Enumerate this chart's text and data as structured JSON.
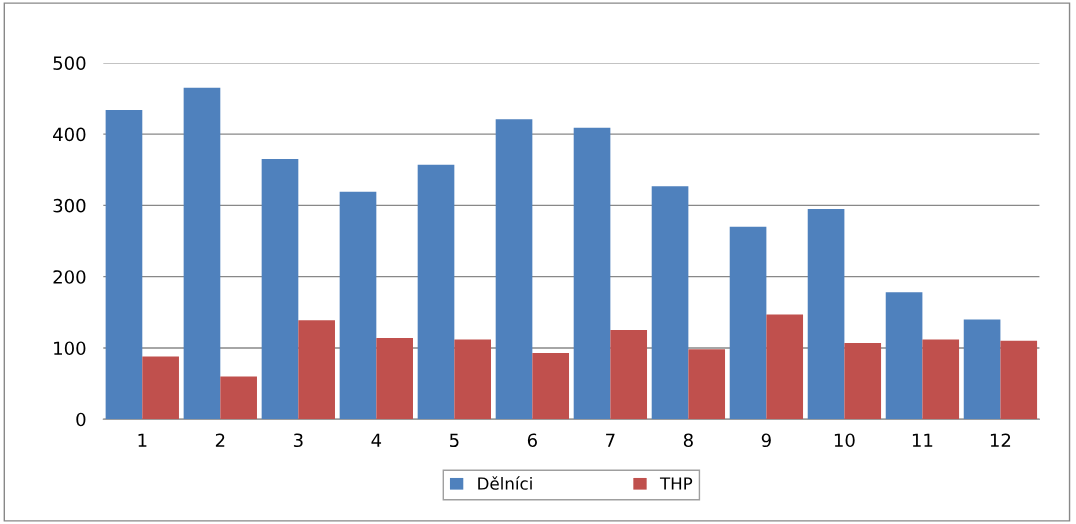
{
  "chart_data": {
    "type": "bar",
    "categories": [
      "1",
      "2",
      "3",
      "4",
      "5",
      "6",
      "7",
      "8",
      "9",
      "10",
      "11",
      "12"
    ],
    "series": [
      {
        "name": "Dělníci",
        "color": "#4f81bd",
        "values": [
          434,
          465,
          365,
          319,
          357,
          421,
          409,
          327,
          270,
          295,
          178,
          140
        ]
      },
      {
        "name": "THP",
        "color": "#c0504d",
        "values": [
          88,
          60,
          139,
          114,
          112,
          93,
          125,
          98,
          147,
          107,
          112,
          110
        ]
      }
    ],
    "ylim": [
      0,
      500
    ],
    "yticks": [
      0,
      100,
      200,
      300,
      400,
      500
    ],
    "grid": "y",
    "legend": "bottom"
  }
}
